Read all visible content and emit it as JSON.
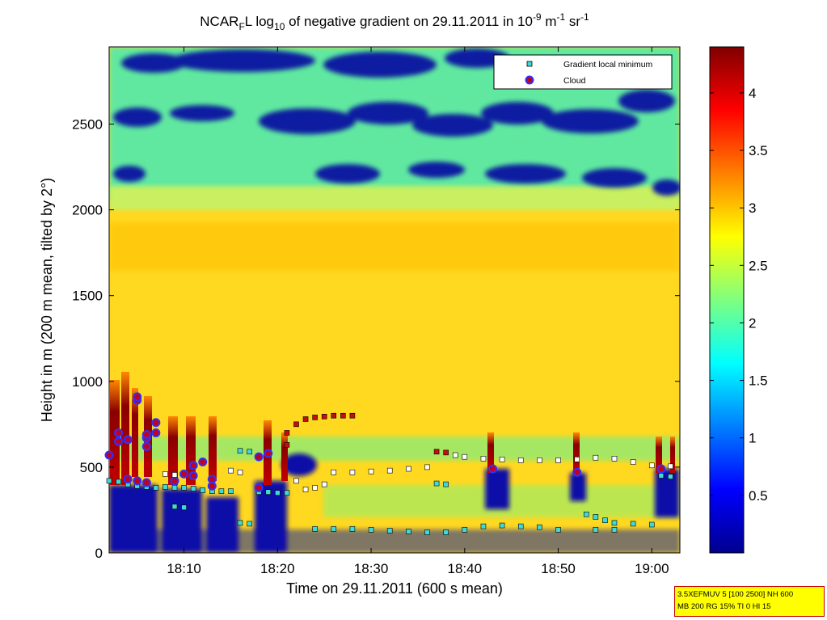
{
  "title": {
    "prefix": "NCAR",
    "prefix_sub": "F",
    "mid": "L log",
    "log_sub": "10",
    "rest": " of negative gradient on 29.11.2011 in 10",
    "exp1": "-9",
    "unit_m": " m",
    "exp2": "-1",
    "unit_sr": " sr",
    "exp3": "-1"
  },
  "colors": {
    "minimum_marker": "#40d8d8",
    "cloud_marker": "#c00020",
    "cloud_marker_edge": "#3030ff",
    "info_box_bg": "#ffff00",
    "info_box_border": "#cc0000"
  },
  "info_box": {
    "line1": "3.5XEFMUV 5 [100 2500] NH 600",
    "line2": "MB 200 RG 15% TI 0 HI 15"
  },
  "chart_data": {
    "type": "heatmap",
    "xlabel": "Time on 29.11.2011 (600 s mean)",
    "ylabel": "Height in m (200 m mean, tilted by 2°)",
    "xlim": [
      "18:02",
      "19:03"
    ],
    "ylim": [
      0,
      2950
    ],
    "x_tick_labels": [
      "18:10",
      "18:20",
      "18:30",
      "18:40",
      "18:50",
      "19:00"
    ],
    "y_tick_labels": [
      "0",
      "500",
      "1000",
      "1500",
      "2000",
      "2500"
    ],
    "colorbar": {
      "colormap": "jet",
      "range": [
        0,
        4.4
      ],
      "tick_labels": [
        "0.5",
        "1",
        "1.5",
        "2",
        "2.5",
        "3",
        "3.5",
        "4"
      ]
    },
    "legend": {
      "placement": "top-right",
      "entries": [
        "Gradient local minimum",
        "Cloud"
      ]
    },
    "grid": false,
    "field_description": {
      "low_layer_0_600m": "mixed 0.5-4.4, dark red plumes with blue gaps",
      "layer_700_2200m": "approx 2.5-3.0",
      "layer_2200_2950m": "approx 1.0-2.3 with dark blue patches"
    },
    "series": [
      {
        "name": "Gradient local minimum",
        "points": [
          {
            "x": "18:02",
            "y": 420
          },
          {
            "x": "18:03",
            "y": 415
          },
          {
            "x": "18:04",
            "y": 400
          },
          {
            "x": "18:05",
            "y": 390
          },
          {
            "x": "18:06",
            "y": 385
          },
          {
            "x": "18:07",
            "y": 380
          },
          {
            "x": "18:08",
            "y": 385
          },
          {
            "x": "18:09",
            "y": 380
          },
          {
            "x": "18:10",
            "y": 380
          },
          {
            "x": "18:11",
            "y": 375
          },
          {
            "x": "18:12",
            "y": 365
          },
          {
            "x": "18:13",
            "y": 360
          },
          {
            "x": "18:14",
            "y": 360
          },
          {
            "x": "18:15",
            "y": 360
          },
          {
            "x": "18:16",
            "y": 595
          },
          {
            "x": "18:17",
            "y": 590
          },
          {
            "x": "18:18",
            "y": 355
          },
          {
            "x": "18:19",
            "y": 355
          },
          {
            "x": "18:20",
            "y": 350
          },
          {
            "x": "18:21",
            "y": 350
          },
          {
            "x": "18:16",
            "y": 175
          },
          {
            "x": "18:17",
            "y": 170
          },
          {
            "x": "18:24",
            "y": 140
          },
          {
            "x": "18:26",
            "y": 140
          },
          {
            "x": "18:28",
            "y": 140
          },
          {
            "x": "18:30",
            "y": 135
          },
          {
            "x": "18:32",
            "y": 130
          },
          {
            "x": "18:34",
            "y": 125
          },
          {
            "x": "18:36",
            "y": 120
          },
          {
            "x": "18:38",
            "y": 120
          },
          {
            "x": "18:40",
            "y": 135
          },
          {
            "x": "18:42",
            "y": 155
          },
          {
            "x": "18:44",
            "y": 160
          },
          {
            "x": "18:46",
            "y": 155
          },
          {
            "x": "18:48",
            "y": 150
          },
          {
            "x": "18:50",
            "y": 135
          },
          {
            "x": "18:53",
            "y": 225
          },
          {
            "x": "18:54",
            "y": 210
          },
          {
            "x": "18:55",
            "y": 190
          },
          {
            "x": "18:56",
            "y": 175
          },
          {
            "x": "18:54",
            "y": 135
          },
          {
            "x": "18:56",
            "y": 135
          },
          {
            "x": "18:58",
            "y": 170
          },
          {
            "x": "19:00",
            "y": 165
          },
          {
            "x": "18:43",
            "y": 490
          },
          {
            "x": "18:52",
            "y": 470
          },
          {
            "x": "19:01",
            "y": 450
          },
          {
            "x": "19:02",
            "y": 445
          },
          {
            "x": "18:37",
            "y": 405
          },
          {
            "x": "18:38",
            "y": 400
          },
          {
            "x": "18:09",
            "y": 270
          },
          {
            "x": "18:10",
            "y": 265
          }
        ]
      },
      {
        "name": "Cloud",
        "points": [
          {
            "x": "18:02",
            "y": 570
          },
          {
            "x": "18:03",
            "y": 650
          },
          {
            "x": "18:03",
            "y": 700
          },
          {
            "x": "18:04",
            "y": 660
          },
          {
            "x": "18:05",
            "y": 890
          },
          {
            "x": "18:05",
            "y": 910
          },
          {
            "x": "18:06",
            "y": 670
          },
          {
            "x": "18:06",
            "y": 690
          },
          {
            "x": "18:06",
            "y": 620
          },
          {
            "x": "18:07",
            "y": 700
          },
          {
            "x": "18:07",
            "y": 760
          },
          {
            "x": "18:04",
            "y": 430
          },
          {
            "x": "18:05",
            "y": 420
          },
          {
            "x": "18:06",
            "y": 410
          },
          {
            "x": "18:09",
            "y": 420
          },
          {
            "x": "18:10",
            "y": 460
          },
          {
            "x": "18:11",
            "y": 450
          },
          {
            "x": "18:11",
            "y": 510
          },
          {
            "x": "18:12",
            "y": 530
          },
          {
            "x": "18:13",
            "y": 430
          },
          {
            "x": "18:13",
            "y": 390
          },
          {
            "x": "18:18",
            "y": 560
          },
          {
            "x": "18:19",
            "y": 580
          },
          {
            "x": "18:18",
            "y": 380
          },
          {
            "x": "18:43",
            "y": 490
          },
          {
            "x": "18:52",
            "y": 470
          },
          {
            "x": "19:01",
            "y": 490
          }
        ]
      },
      {
        "name": "",
        "points": [
          {
            "x": "18:21",
            "y": 630
          },
          {
            "x": "18:21",
            "y": 700
          },
          {
            "x": "18:22",
            "y": 750
          },
          {
            "x": "18:23",
            "y": 780
          },
          {
            "x": "18:24",
            "y": 790
          },
          {
            "x": "18:25",
            "y": 795
          },
          {
            "x": "18:26",
            "y": 800
          },
          {
            "x": "18:27",
            "y": 800
          },
          {
            "x": "18:28",
            "y": 800
          },
          {
            "x": "18:22",
            "y": 420
          },
          {
            "x": "18:23",
            "y": 370
          },
          {
            "x": "18:24",
            "y": 380
          },
          {
            "x": "18:25",
            "y": 400
          },
          {
            "x": "18:26",
            "y": 470
          },
          {
            "x": "18:28",
            "y": 470
          },
          {
            "x": "18:30",
            "y": 475
          },
          {
            "x": "18:32",
            "y": 480
          },
          {
            "x": "18:34",
            "y": 490
          },
          {
            "x": "18:36",
            "y": 500
          },
          {
            "x": "18:37",
            "y": 590
          },
          {
            "x": "18:38",
            "y": 585
          },
          {
            "x": "18:39",
            "y": 570
          },
          {
            "x": "18:40",
            "y": 560
          },
          {
            "x": "18:42",
            "y": 550
          },
          {
            "x": "18:44",
            "y": 545
          },
          {
            "x": "18:46",
            "y": 540
          },
          {
            "x": "18:48",
            "y": 540
          },
          {
            "x": "18:50",
            "y": 540
          },
          {
            "x": "18:52",
            "y": 545
          },
          {
            "x": "18:54",
            "y": 555
          },
          {
            "x": "18:56",
            "y": 550
          },
          {
            "x": "18:58",
            "y": 530
          },
          {
            "x": "19:00",
            "y": 510
          },
          {
            "x": "19:02",
            "y": 505
          },
          {
            "x": "18:08",
            "y": 460
          },
          {
            "x": "18:09",
            "y": 455
          },
          {
            "x": "18:15",
            "y": 480
          },
          {
            "x": "18:16",
            "y": 470
          }
        ]
      }
    ]
  }
}
